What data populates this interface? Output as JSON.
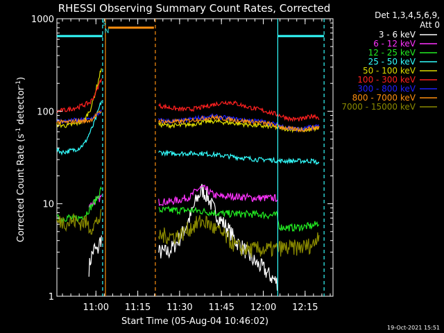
{
  "chart_data": {
    "type": "line",
    "title": "RHESSI Observing Summary Count Rates, Corrected",
    "xlabel": "Start Time (05-Aug-04 10:46:02)",
    "ylabel_main": "Corrected Count Rate (s",
    "ylabel_sup1": "-1",
    "ylabel_mid": " detector",
    "ylabel_sup2": "-1",
    "ylabel_end": ")",
    "yscale": "log",
    "ylim": [
      1,
      1000
    ],
    "xlim_minutes": [
      0,
      99
    ],
    "yticks": [
      {
        "value": 1,
        "label": "1"
      },
      {
        "value": 10,
        "label": "10"
      },
      {
        "value": 100,
        "label": "100"
      },
      {
        "value": 1000,
        "label": "1000"
      }
    ],
    "xticks": [
      {
        "minute": 14,
        "label": "11:00"
      },
      {
        "minute": 29,
        "label": "11:15"
      },
      {
        "minute": 44,
        "label": "11:30"
      },
      {
        "minute": 59,
        "label": "11:45"
      },
      {
        "minute": 74,
        "label": "12:00"
      },
      {
        "minute": 89,
        "label": "12:15"
      }
    ],
    "legend_header": [
      "Det 1,3,4,5,6,9,",
      "Att 0"
    ],
    "legend_position": "top-right (outside plot)",
    "series": [
      {
        "name": "3 - 6 keV",
        "color": "#ffffff",
        "segments": [
          {
            "x": [
              11.5,
              12.5,
              13.5,
              14.5,
              15.5,
              16.0
            ],
            "y": [
              2.0,
              2.8,
              3.3,
              3.0,
              4.0,
              4.2
            ]
          },
          {
            "x": [
              36.5,
              38,
              40,
              42,
              44,
              46,
              48,
              50,
              52,
              54,
              56,
              58,
              60,
              62,
              64,
              66,
              68,
              70,
              72,
              74,
              76,
              78,
              79
            ],
            "y": [
              3.0,
              3.0,
              3.0,
              3.5,
              4.2,
              5.5,
              7.5,
              11.0,
              14.0,
              12.0,
              9.0,
              7.0,
              6.0,
              5.0,
              4.0,
              3.5,
              3.0,
              2.5,
              2.2,
              2.0,
              1.7,
              1.5,
              1.4
            ]
          }
        ]
      },
      {
        "name": "6 - 12 keV",
        "color": "#ff33ff",
        "segments": [
          {
            "x": [
              11.5,
              12.5,
              13.5,
              14.5,
              15.5,
              16.0
            ],
            "y": [
              9.5,
              10.0,
              10.5,
              11.0,
              11.5,
              12.0
            ]
          },
          {
            "x": [
              36.5,
              40,
              44,
              46,
              48,
              50,
              52,
              54,
              56,
              58,
              60,
              62,
              64,
              66,
              68,
              70,
              72,
              74,
              76,
              78,
              79
            ],
            "y": [
              10.5,
              10.5,
              11.0,
              11.5,
              12.0,
              14.0,
              15.0,
              14.0,
              12.5,
              12.0,
              12.0,
              12.0,
              12.0,
              11.8,
              11.8,
              11.5,
              11.5,
              11.5,
              11.5,
              11.5,
              11.5
            ]
          }
        ]
      },
      {
        "name": "12 - 25 keV",
        "color": "#22ee22",
        "segments": [
          {
            "x": [
              0,
              2,
              4,
              6,
              8,
              10,
              12,
              13,
              14,
              15,
              16
            ],
            "y": [
              7.0,
              6.8,
              7.2,
              6.8,
              7.0,
              7.5,
              9.0,
              10.0,
              11.0,
              12.5,
              15.0
            ]
          },
          {
            "x": [
              36.5,
              40,
              44,
              48,
              52,
              56,
              60,
              64,
              68,
              72,
              76,
              78,
              79,
              79.5,
              80,
              84,
              88,
              92,
              94
            ],
            "y": [
              8.5,
              8.5,
              8.5,
              8.5,
              8.3,
              8.0,
              7.8,
              7.8,
              7.7,
              7.7,
              7.5,
              7.5,
              7.5,
              6.0,
              5.6,
              5.5,
              5.6,
              5.8,
              6.3
            ]
          }
        ]
      },
      {
        "name": "25 - 50 keV",
        "color": "#33ffff",
        "segments": [
          {
            "x": [
              0,
              2,
              4,
              6,
              8,
              10,
              11,
              12,
              13,
              14,
              15,
              16
            ],
            "y": [
              38,
              36,
              37,
              38,
              40,
              45,
              52,
              60,
              70,
              85,
              105,
              130
            ]
          },
          {
            "x": [
              36.5,
              40,
              44,
              48,
              52,
              56,
              60,
              64,
              68,
              72,
              76,
              80,
              84,
              88,
              92,
              94
            ],
            "y": [
              36,
              35,
              35,
              35,
              35,
              34,
              33,
              32,
              31,
              30,
              30,
              29,
              29,
              29,
              29,
              27
            ]
          }
        ]
      },
      {
        "name": "50 - 100 keV",
        "color": "#dddd00",
        "segments": [
          {
            "x": [
              0,
              2,
              4,
              6,
              8,
              10,
              12,
              13,
              14,
              15,
              16
            ],
            "y": [
              72,
              70,
              70,
              72,
              75,
              82,
              105,
              130,
              170,
              220,
              300
            ]
          },
          {
            "x": [
              36.5,
              40,
              44,
              48,
              52,
              56,
              60,
              64,
              68,
              72,
              76,
              80,
              84,
              88,
              92,
              94
            ],
            "y": [
              72,
              70,
              70,
              72,
              76,
              78,
              76,
              74,
              72,
              70,
              68,
              66,
              64,
              62,
              64,
              66
            ]
          }
        ]
      },
      {
        "name": "100 - 300 keV",
        "color": "#ff2020",
        "segments": [
          {
            "x": [
              0,
              2,
              4,
              6,
              8,
              10,
              12,
              13,
              14,
              15,
              16
            ],
            "y": [
              100,
              102,
              104,
              108,
              112,
              118,
              125,
              140,
              160,
              190,
              230
            ]
          },
          {
            "x": [
              36.5,
              40,
              44,
              48,
              52,
              56,
              60,
              62,
              64,
              68,
              72,
              76,
              80,
              84,
              88,
              92,
              94
            ],
            "y": [
              115,
              110,
              105,
              105,
              110,
              118,
              125,
              125,
              122,
              112,
              105,
              98,
              90,
              82,
              82,
              90,
              85
            ]
          }
        ]
      },
      {
        "name": "300 - 800 keV",
        "color": "#2020ff",
        "segments": [
          {
            "x": [
              0,
              2,
              4,
              6,
              8,
              10,
              12,
              13,
              14,
              15,
              16
            ],
            "y": [
              78,
              78,
              78,
              80,
              80,
              80,
              82,
              86,
              90,
              95,
              100
            ]
          },
          {
            "x": [
              36.5,
              40,
              44,
              48,
              52,
              56,
              60,
              64,
              68,
              72,
              76,
              80,
              84,
              88,
              92,
              94
            ],
            "y": [
              80,
              78,
              78,
              82,
              85,
              88,
              85,
              82,
              80,
              78,
              75,
              70,
              65,
              64,
              68,
              70
            ]
          }
        ]
      },
      {
        "name": "800 - 7000 keV",
        "color": "#ff9010",
        "segments": [
          {
            "x": [
              0,
              2,
              4,
              6,
              8,
              10,
              12,
              13,
              14,
              15,
              16
            ],
            "y": [
              76,
              76,
              76,
              78,
              78,
              78,
              80,
              85,
              90,
              95,
              100
            ]
          },
          {
            "x": [
              36.5,
              40,
              44,
              48,
              52,
              56,
              60,
              64,
              68,
              72,
              76,
              80,
              84,
              88,
              92,
              94
            ],
            "y": [
              78,
              77,
              77,
              80,
              83,
              86,
              83,
              80,
              78,
              76,
              73,
              68,
              64,
              63,
              66,
              68
            ]
          }
        ]
      },
      {
        "name": "7000 - 15000 keV",
        "color": "#8a8a00",
        "segments": [
          {
            "x": [
              0,
              2,
              4,
              6,
              8,
              10,
              12,
              13,
              14,
              15,
              16
            ],
            "y": [
              6.2,
              6.5,
              6.2,
              6.6,
              6.2,
              6.4,
              5.5,
              5.8,
              6.2,
              6.8,
              7.2
            ]
          },
          {
            "x": [
              36.5,
              40,
              44,
              46,
              48,
              50,
              52,
              54,
              56,
              58,
              60,
              62,
              64,
              66,
              68,
              70,
              72,
              74,
              76,
              78,
              80,
              84,
              88,
              92,
              94
            ],
            "y": [
              4.5,
              4.5,
              4.5,
              5.0,
              5.5,
              6.0,
              6.5,
              6.2,
              5.5,
              5.0,
              4.5,
              4.0,
              3.5,
              3.3,
              3.2,
              3.2,
              3.2,
              3.2,
              3.2,
              3.2,
              3.3,
              3.3,
              3.4,
              3.6,
              5.0
            ]
          }
        ]
      }
    ],
    "overlays": [
      {
        "kind": "vline",
        "minute": 16.4,
        "color": "#33ffff",
        "style": "dashed"
      },
      {
        "kind": "vline",
        "minute": 17.4,
        "color": "#ff9010",
        "style": "solid"
      },
      {
        "kind": "vline",
        "minute": 35.3,
        "color": "#ff9010",
        "style": "dashed"
      },
      {
        "kind": "vline",
        "minute": 79.2,
        "color": "#33ffff",
        "style": "solid"
      },
      {
        "kind": "vline",
        "minute": 95.8,
        "color": "#33ffff",
        "style": "dashed"
      },
      {
        "kind": "hbar",
        "from": 0,
        "to": 16.4,
        "value": 650,
        "color": "#33ffff"
      },
      {
        "kind": "hbar",
        "from": 79.2,
        "to": 95.8,
        "value": 650,
        "color": "#33ffff"
      },
      {
        "kind": "hbar",
        "from": 18.4,
        "to": 34.8,
        "value": 800,
        "color": "#ff9010"
      }
    ],
    "flags": [
      {
        "text": "S",
        "minute": 16.9,
        "value": 850,
        "color": "#33ffff"
      },
      {
        "text": "N",
        "minute": 17.9,
        "value": 700,
        "color": "#33ffff"
      }
    ]
  },
  "footer": {
    "date_stamp": "19-Oct-2021 15:51"
  }
}
